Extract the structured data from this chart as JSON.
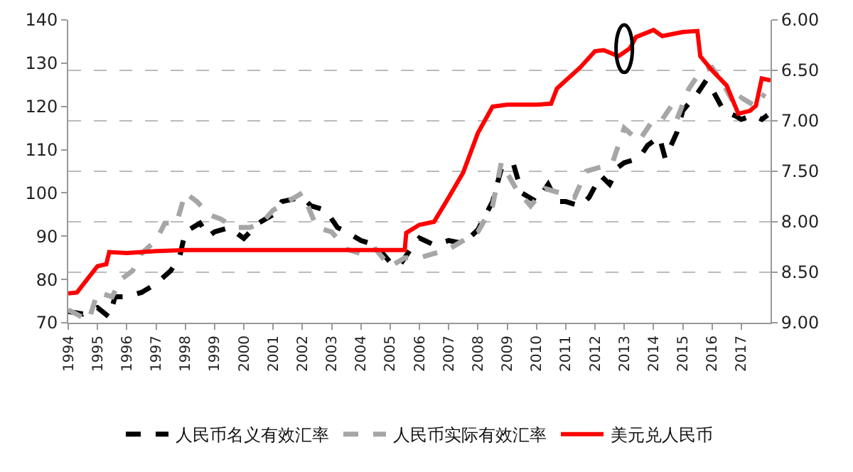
{
  "chart_data": {
    "type": "line",
    "legend": "bottom",
    "grid": "y2",
    "xlim": [
      1994,
      2018
    ],
    "xticks": [
      1994,
      1995,
      1996,
      1997,
      1998,
      1999,
      2000,
      2001,
      2002,
      2003,
      2004,
      2005,
      2006,
      2007,
      2008,
      2009,
      2010,
      2011,
      2012,
      2013,
      2014,
      2015,
      2016,
      2017
    ],
    "ylim": [
      70,
      140
    ],
    "yticks": [
      70,
      80,
      90,
      100,
      110,
      120,
      130,
      140
    ],
    "y2lim": [
      9.0,
      6.0
    ],
    "y2ticks": [
      {
        "value": 6,
        "label": "6.00"
      },
      {
        "value": 6.5,
        "label": "6.50"
      },
      {
        "value": 7,
        "label": "7.00"
      },
      {
        "value": 7.5,
        "label": "7.50"
      },
      {
        "value": 8,
        "label": "8.00"
      },
      {
        "value": 8.5,
        "label": "8.50"
      },
      {
        "value": 9,
        "label": "9.00"
      }
    ],
    "series": [
      {
        "name": "人民币名义有效汇率",
        "color": "#000000",
        "line_style": "dashed",
        "x": [
          1994,
          1994.5,
          1995,
          1995.4,
          1995.6,
          1996,
          1996.5,
          1997,
          1997.5,
          1997.8,
          1998,
          1998.5,
          1998.8,
          1999,
          1999.5,
          2000,
          2000.5,
          2001,
          2001.3,
          2002,
          2002.3,
          2002.8,
          2003.2,
          2003.5,
          2004,
          2004.5,
          2005,
          2005.3,
          2005.8,
          2006,
          2006.5,
          2007,
          2007.5,
          2008,
          2008.5,
          2008.8,
          2009.2,
          2009.5,
          2010,
          2010.4,
          2010.7,
          2011,
          2011.5,
          2011.8,
          2012.2,
          2012.5,
          2012.8,
          2013,
          2013.5,
          2013.8,
          2014.2,
          2014.4,
          2014.8,
          2015,
          2015.5,
          2015.8,
          2016,
          2016.4,
          2016.8,
          2017,
          2017.4,
          2017.7,
          2017.9
        ],
        "values": [
          72.6,
          72,
          73.5,
          71.3,
          76,
          76,
          77,
          79,
          82,
          85,
          91,
          93,
          90,
          91,
          92,
          89.5,
          93,
          95,
          98,
          99,
          97,
          96,
          92,
          91,
          89,
          88,
          84,
          83,
          88,
          89.6,
          88,
          89,
          88.3,
          91.5,
          98,
          105.6,
          107,
          100,
          98,
          102,
          98,
          98,
          97,
          99,
          104,
          102,
          106,
          107,
          108,
          111,
          113,
          108,
          114,
          119,
          123,
          126,
          124,
          119,
          117.8,
          117,
          118,
          117,
          118
        ]
      },
      {
        "name": "人民币实际有效汇率",
        "color": "#a6a6a6",
        "line_style": "dashed",
        "x": [
          1994,
          1994.7,
          1995,
          1995.5,
          1995.8,
          1996.2,
          1996.5,
          1997,
          1997.3,
          1997.7,
          1998,
          1998.4,
          1998.8,
          1999.2,
          1999.7,
          2000.2,
          2000.6,
          2001,
          2001.5,
          2002,
          2002.5,
          2003,
          2003.5,
          2004,
          2004.5,
          2005,
          2005.5,
          2006,
          2006.5,
          2007,
          2007.5,
          2008,
          2008.5,
          2008.8,
          2009.3,
          2009.8,
          2010.3,
          2010.8,
          2011.3,
          2011.7,
          2012.2,
          2012.6,
          2013,
          2013.5,
          2013.9,
          2014.2,
          2014.6,
          2014.8,
          2015.2,
          2015.6,
          2016,
          2016.4,
          2016.8,
          2017,
          2017.5,
          2017.8
        ],
        "values": [
          73,
          70.5,
          77,
          76,
          80,
          82,
          86,
          89,
          93,
          93,
          100,
          98,
          95,
          94,
          92,
          92,
          93,
          96,
          98,
          100,
          92,
          91,
          87,
          86,
          87,
          83,
          85,
          85,
          86,
          87,
          89,
          91,
          97,
          107,
          101,
          97,
          101,
          100,
          99,
          105,
          106,
          107,
          115,
          112,
          116,
          116,
          120,
          117,
          124,
          128,
          129,
          125,
          120,
          122,
          120,
          123
        ]
      },
      {
        "name": "美元兑人民币",
        "color": "#ff0000",
        "line_style": "solid",
        "axis": "y2",
        "x": [
          1994,
          1994.3,
          1994.7,
          1995,
          1995.3,
          1995.4,
          1996,
          1997,
          1998,
          2000,
          2005.5,
          2005.55,
          2006,
          2006.5,
          2007,
          2007.5,
          2008,
          2008.5,
          2009,
          2010,
          2010.5,
          2010.7,
          2011,
          2011.5,
          2012,
          2012.3,
          2012.8,
          2013.2,
          2013.4,
          2014,
          2014.3,
          2015,
          2015.5,
          2015.6,
          2016,
          2016.5,
          2016.9,
          2017.3,
          2017.5,
          2017.7,
          2018
        ],
        "values": [
          8.71,
          8.7,
          8.55,
          8.44,
          8.42,
          8.3,
          8.31,
          8.29,
          8.28,
          8.28,
          8.28,
          8.11,
          8.03,
          8.0,
          7.76,
          7.51,
          7.12,
          6.86,
          6.84,
          6.84,
          6.83,
          6.68,
          6.6,
          6.47,
          6.31,
          6.3,
          6.36,
          6.28,
          6.17,
          6.1,
          6.16,
          6.12,
          6.11,
          6.36,
          6.5,
          6.65,
          6.93,
          6.9,
          6.85,
          6.58,
          6.6
        ]
      }
    ]
  }
}
